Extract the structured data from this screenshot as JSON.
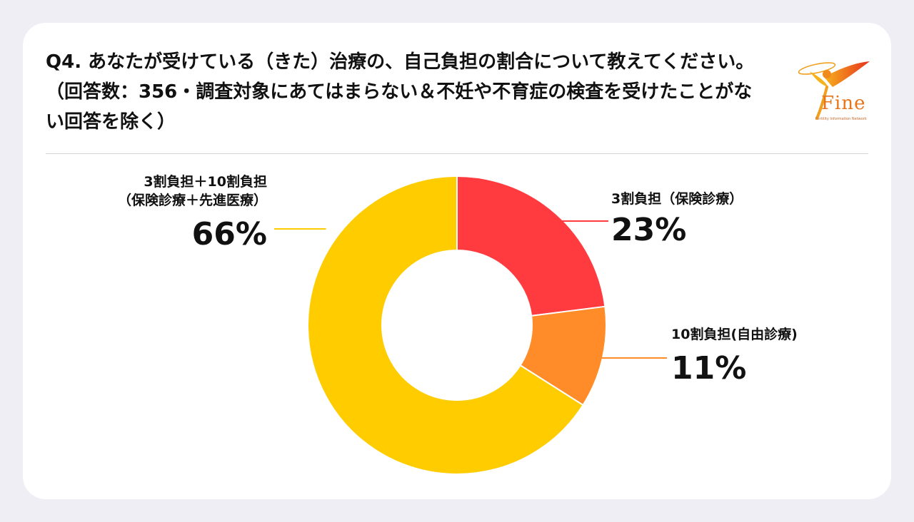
{
  "title": "Q4. あなたが受けている（きた）治療の、自己負担の割合について教えてください。（回答数：356・調査対象にあてはまらない＆不妊や不育症の検査を受けたことがない回答を除く）",
  "logo": {
    "text": "Fine",
    "tagline": "Fertility Information Network"
  },
  "colors": {
    "red": "#ff3b3f",
    "orange": "#ff8c28",
    "yellow": "#ffcc00"
  },
  "chart_data": {
    "type": "pie",
    "donut": true,
    "categories": [
      "3割負担（保険診療）",
      "10割負担(自由診療)",
      "3割負担＋10割負担（保険診療＋先進医療）"
    ],
    "values": [
      23,
      11,
      66
    ],
    "value_labels": [
      "23%",
      "11%",
      "66%"
    ],
    "colors": [
      "#ff3b3f",
      "#ff8c28",
      "#ffcc00"
    ],
    "label_lines": [
      [
        "3割負担（保険診療）"
      ],
      [
        "10割負担(自由診療)"
      ],
      [
        "3割負担＋10割負担",
        "（保険診療＋先進医療）"
      ]
    ]
  }
}
